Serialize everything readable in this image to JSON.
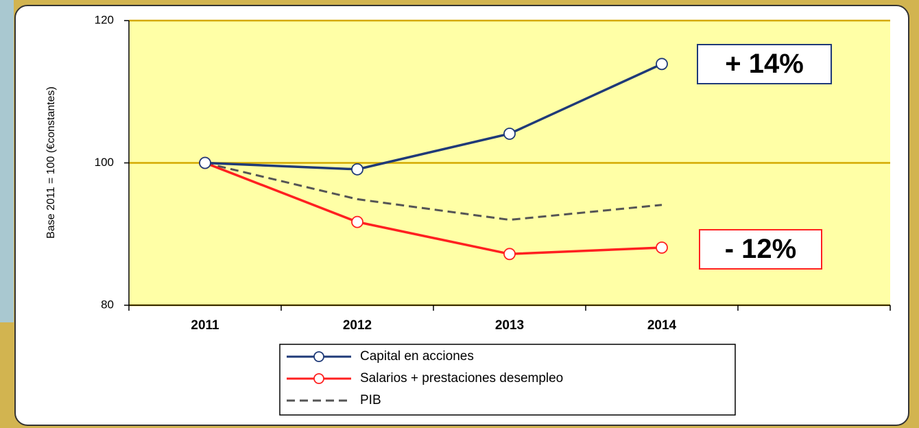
{
  "chart_data": {
    "type": "line",
    "y_label": "Base 2011 = 100 (€constantes)",
    "categories": [
      "2011",
      "2012",
      "2013",
      "2014",
      null
    ],
    "series": [
      {
        "name": "Capital en acciones",
        "color": "#1f3a78",
        "marker": true,
        "dashed": false,
        "values": [
          100,
          99.1,
          104.1,
          113.9,
          null
        ]
      },
      {
        "name": "Salarios + prestaciones desempleo",
        "color": "#ff2020",
        "marker": true,
        "dashed": false,
        "values": [
          100,
          91.7,
          87.2,
          88.1,
          null
        ]
      },
      {
        "name": "PIB",
        "color": "#555555",
        "marker": false,
        "dashed": true,
        "values": [
          100,
          94.9,
          92,
          94.1,
          null
        ]
      }
    ],
    "annotations": [
      "+ 14%",
      "- 12%"
    ],
    "ylim": [
      80,
      120
    ],
    "yticks": [
      80,
      100,
      120
    ],
    "grid": true,
    "grid_color": "#d4a800",
    "plot_background": "#ffffa6"
  }
}
